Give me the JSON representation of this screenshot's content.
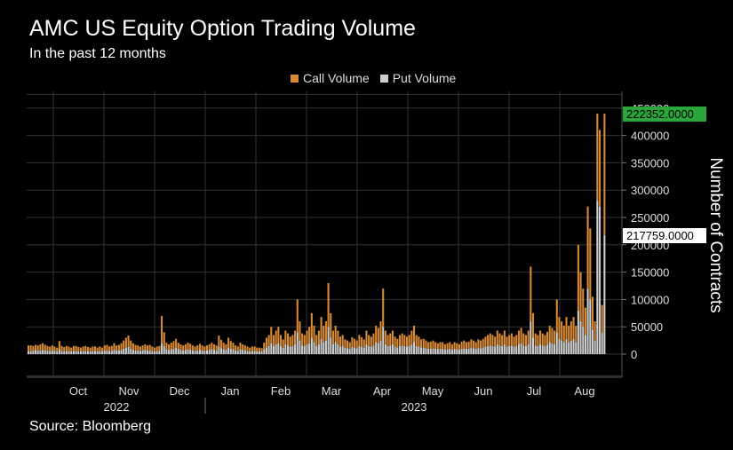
{
  "title": "AMC US Equity Option Trading Volume",
  "subtitle": "In the past 12 months",
  "source": "Source: Bloomberg",
  "colors": {
    "call": "#d78a33",
    "put": "#cfcfcf",
    "background": "#000000",
    "grid": "#333333",
    "last_call_badge": "#2aa63a",
    "last_put_badge": "#ffffff"
  },
  "chart_data": {
    "type": "bar",
    "stacked": true,
    "legend": [
      "Call Volume",
      "Put Volume"
    ],
    "legend_position": "top-center",
    "ylabel": "Number of Contracts",
    "ylim": [
      -50000,
      480000
    ],
    "yticks": [
      0,
      50000,
      100000,
      150000,
      200000,
      250000,
      300000,
      350000,
      400000,
      450000
    ],
    "ytick_labels": [
      "0",
      "50000",
      "100000",
      "150000",
      "200000",
      "250000",
      "300000",
      "350000",
      "400000",
      "450000"
    ],
    "xtick_labels": [
      "Oct",
      "Nov",
      "Dec",
      "Jan",
      "Feb",
      "Mar",
      "Apr",
      "May",
      "Jun",
      "Jul",
      "Aug"
    ],
    "year_labels": [
      "2022",
      "2023"
    ],
    "grid": true,
    "last_call_value": "222352.0000",
    "last_put_value": "217759.0000",
    "series": [
      {
        "name": "Call Volume",
        "values": [
          10000,
          11000,
          8000,
          9000,
          10000,
          11000,
          12000,
          10000,
          9000,
          8000,
          9000,
          8000,
          7000,
          15000,
          9000,
          8000,
          9000,
          8000,
          7000,
          9000,
          9000,
          8000,
          7000,
          8000,
          9000,
          8000,
          7000,
          8000,
          8000,
          7000,
          8000,
          7000,
          9000,
          10000,
          8000,
          9000,
          12000,
          9000,
          10000,
          12000,
          15000,
          18000,
          20000,
          15000,
          12000,
          10000,
          9000,
          8000,
          9000,
          10000,
          9000,
          10000,
          8000,
          7000,
          8000,
          9000,
          50000,
          25000,
          12000,
          10000,
          12000,
          14000,
          16000,
          12000,
          10000,
          9000,
          10000,
          12000,
          11000,
          9000,
          8000,
          9000,
          11000,
          9000,
          8000,
          9000,
          10000,
          12000,
          10000,
          9000,
          20000,
          15000,
          12000,
          10000,
          18000,
          14000,
          12000,
          9000,
          8000,
          12000,
          10000,
          9000,
          8000,
          7000,
          8000,
          8000,
          7000,
          7000,
          6000,
          12000,
          18000,
          20000,
          30000,
          20000,
          25000,
          30000,
          20000,
          15000,
          25000,
          22000,
          18000,
          20000,
          25000,
          60000,
          35000,
          22000,
          20000,
          25000,
          30000,
          45000,
          30000,
          20000,
          25000,
          40000,
          30000,
          35000,
          80000,
          45000,
          25000,
          30000,
          25000,
          18000,
          20000,
          15000,
          14000,
          12000,
          18000,
          16000,
          14000,
          20000,
          18000,
          15000,
          25000,
          20000,
          18000,
          22000,
          30000,
          28000,
          35000,
          70000,
          25000,
          20000,
          22000,
          25000,
          18000,
          16000,
          20000,
          22000,
          20000,
          18000,
          20000,
          25000,
          30000,
          20000,
          18000,
          15000,
          16000,
          14000,
          12000,
          13000,
          14000,
          12000,
          11000,
          12000,
          12000,
          10000,
          11000,
          12000,
          10000,
          12000,
          11000,
          10000,
          13000,
          14000,
          12000,
          13000,
          15000,
          14000,
          12000,
          15000,
          14000,
          16000,
          18000,
          20000,
          22000,
          20000,
          18000,
          25000,
          22000,
          20000,
          25000,
          18000,
          20000,
          22000,
          18000,
          20000,
          25000,
          28000,
          22000,
          20000,
          25000,
          100000,
          45000,
          22000,
          20000,
          25000,
          22000,
          20000,
          24000,
          30000,
          28000,
          25000,
          60000,
          40000,
          35000,
          30000,
          40000,
          30000,
          35000,
          40000,
          30000,
          120000,
          90000,
          70000,
          50000,
          150000,
          130000,
          60000,
          35000,
          160000,
          140000,
          50000,
          222352
        ],
        "color": "call"
      },
      {
        "name": "Put Volume",
        "values": [
          6000,
          5000,
          7000,
          8000,
          6000,
          7000,
          8000,
          7000,
          6000,
          6000,
          7000,
          6000,
          5000,
          9000,
          6000,
          5000,
          6000,
          6000,
          5000,
          6000,
          6000,
          5000,
          5000,
          6000,
          6000,
          5000,
          5000,
          6000,
          6000,
          5000,
          6000,
          5000,
          7000,
          7000,
          6000,
          6000,
          8000,
          7000,
          7000,
          8000,
          10000,
          12000,
          14000,
          10000,
          8000,
          7000,
          7000,
          6000,
          7000,
          8000,
          7000,
          7000,
          6000,
          5000,
          6000,
          6000,
          20000,
          15000,
          9000,
          8000,
          9000,
          10000,
          12000,
          9000,
          8000,
          7000,
          8000,
          9000,
          8000,
          7000,
          6000,
          7000,
          8000,
          7000,
          6000,
          7000,
          8000,
          9000,
          8000,
          7000,
          14000,
          11000,
          9000,
          8000,
          12000,
          10000,
          9000,
          7000,
          6000,
          9000,
          8000,
          7000,
          6000,
          5000,
          6000,
          6000,
          5000,
          5000,
          5000,
          9000,
          12000,
          15000,
          20000,
          15000,
          18000,
          20000,
          15000,
          12000,
          18000,
          16000,
          14000,
          15000,
          18000,
          40000,
          25000,
          16000,
          15000,
          18000,
          20000,
          30000,
          22000,
          15000,
          18000,
          28000,
          22000,
          25000,
          50000,
          30000,
          18000,
          22000,
          18000,
          14000,
          15000,
          12000,
          11000,
          10000,
          13000,
          12000,
          11000,
          15000,
          13000,
          12000,
          18000,
          15000,
          14000,
          16000,
          22000,
          20000,
          25000,
          50000,
          18000,
          15000,
          16000,
          18000,
          14000,
          12000,
          15000,
          16000,
          15000,
          14000,
          15000,
          18000,
          22000,
          15000,
          14000,
          12000,
          12000,
          11000,
          10000,
          10000,
          11000,
          10000,
          9000,
          10000,
          10000,
          8000,
          9000,
          10000,
          8000,
          10000,
          9000,
          8000,
          10000,
          11000,
          10000,
          10000,
          12000,
          11000,
          10000,
          12000,
          11000,
          12000,
          14000,
          15000,
          16000,
          15000,
          14000,
          18000,
          16000,
          15000,
          18000,
          14000,
          15000,
          16000,
          14000,
          15000,
          18000,
          20000,
          16000,
          15000,
          18000,
          60000,
          30000,
          16000,
          15000,
          18000,
          16000,
          15000,
          17000,
          22000,
          20000,
          18000,
          40000,
          28000,
          25000,
          22000,
          28000,
          22000,
          25000,
          28000,
          22000,
          80000,
          60000,
          50000,
          35000,
          120000,
          100000,
          45000,
          25000,
          280000,
          270000,
          40000,
          217759
        ],
        "color": "put"
      }
    ]
  }
}
